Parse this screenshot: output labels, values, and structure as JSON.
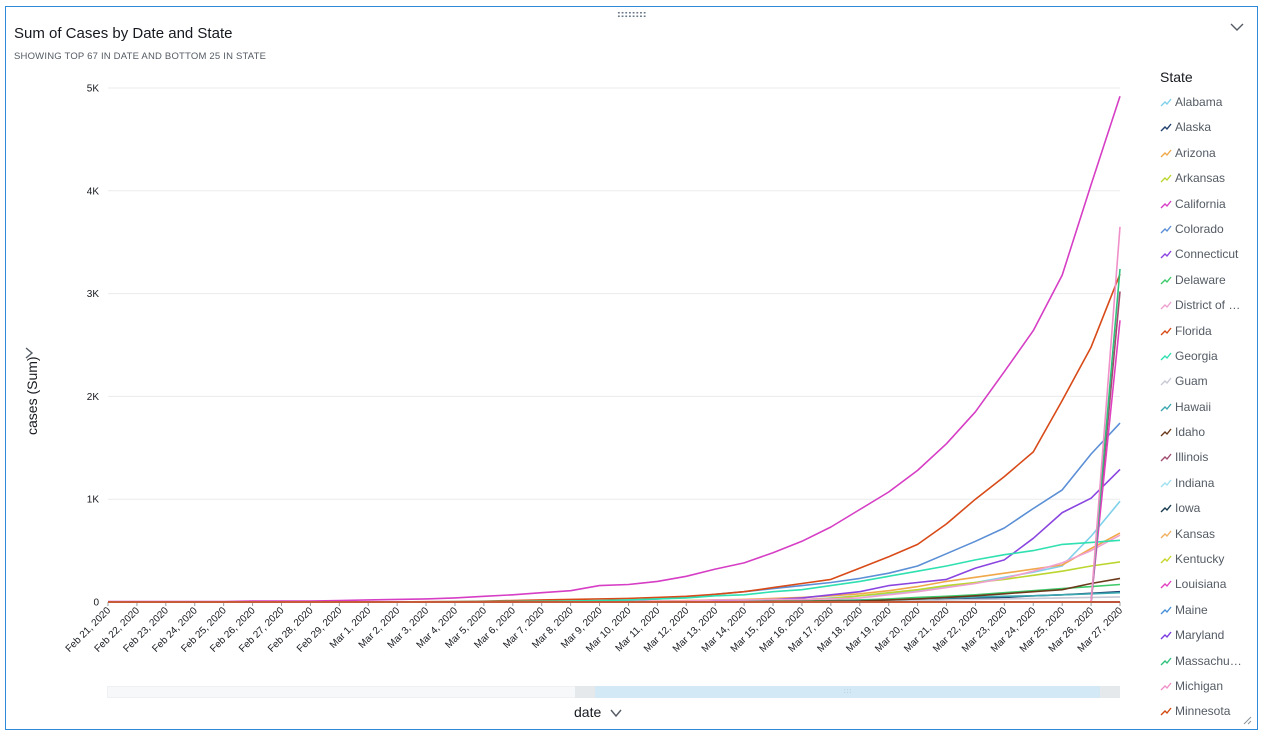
{
  "header": {
    "title": "Sum of Cases by Date and State",
    "subtitle": "SHOWING TOP 67 IN DATE AND BOTTOM 25 IN STATE"
  },
  "axes": {
    "y_label": "cases (Sum)",
    "x_label": "date",
    "y_ticks": [
      "0",
      "1K",
      "2K",
      "3K",
      "4K",
      "5K"
    ]
  },
  "legend": {
    "title": "State"
  },
  "icons": {
    "collapse": "chevron-down-icon",
    "y_menu": "chevron-right-icon",
    "x_menu": "chevron-down-icon",
    "drag": "drag-handle-icon",
    "resize": "resize-corner-icon"
  },
  "chart_data": {
    "type": "line",
    "title": "Sum of Cases by Date and State",
    "xlabel": "date",
    "ylabel": "cases (Sum)",
    "ylim": [
      0,
      5000
    ],
    "grid": true,
    "legend_position": "right",
    "x": [
      "Feb 21, 2020",
      "Feb 22, 2020",
      "Feb 23, 2020",
      "Feb 24, 2020",
      "Feb 25, 2020",
      "Feb 26, 2020",
      "Feb 27, 2020",
      "Feb 28, 2020",
      "Feb 29, 2020",
      "Mar 1, 2020",
      "Mar 2, 2020",
      "Mar 3, 2020",
      "Mar 4, 2020",
      "Mar 5, 2020",
      "Mar 6, 2020",
      "Mar 7, 2020",
      "Mar 8, 2020",
      "Mar 9, 2020",
      "Mar 10, 2020",
      "Mar 11, 2020",
      "Mar 12, 2020",
      "Mar 13, 2020",
      "Mar 14, 2020",
      "Mar 15, 2020",
      "Mar 16, 2020",
      "Mar 17, 2020",
      "Mar 18, 2020",
      "Mar 19, 2020",
      "Mar 20, 2020",
      "Mar 21, 2020",
      "Mar 22, 2020",
      "Mar 23, 2020",
      "Mar 24, 2020",
      "Mar 25, 2020",
      "Mar 26, 2020",
      "Mar 27, 2020"
    ],
    "series": [
      {
        "name": "Alabama",
        "color": "#7fd0ea",
        "values": [
          0,
          0,
          0,
          0,
          0,
          0,
          0,
          0,
          0,
          0,
          0,
          0,
          0,
          0,
          0,
          0,
          0,
          0,
          0,
          0,
          0,
          0,
          5,
          10,
          20,
          40,
          60,
          80,
          110,
          150,
          190,
          240,
          290,
          350,
          640,
          980
        ]
      },
      {
        "name": "Alaska",
        "color": "#1f3f6e",
        "values": [
          0,
          0,
          0,
          0,
          0,
          0,
          0,
          0,
          0,
          0,
          0,
          0,
          0,
          0,
          0,
          0,
          0,
          0,
          0,
          0,
          0,
          0,
          0,
          0,
          0,
          2,
          5,
          10,
          15,
          25,
          35,
          45,
          60,
          70,
          85,
          100
        ]
      },
      {
        "name": "Arizona",
        "color": "#f0a84a",
        "values": [
          0,
          0,
          0,
          0,
          0,
          0,
          0,
          0,
          0,
          1,
          1,
          1,
          1,
          1,
          1,
          1,
          2,
          5,
          8,
          10,
          15,
          20,
          25,
          35,
          45,
          60,
          80,
          110,
          150,
          200,
          240,
          280,
          320,
          360,
          520,
          670
        ]
      },
      {
        "name": "Arkansas",
        "color": "#bcd62f",
        "values": [
          0,
          0,
          0,
          0,
          0,
          0,
          0,
          0,
          0,
          0,
          0,
          0,
          0,
          0,
          0,
          0,
          0,
          0,
          0,
          0,
          5,
          10,
          15,
          20,
          25,
          35,
          60,
          90,
          120,
          160,
          190,
          220,
          260,
          300,
          350,
          390
        ]
      },
      {
        "name": "California",
        "color": "#d63ec5",
        "values": [
          5,
          5,
          5,
          5,
          5,
          10,
          10,
          10,
          15,
          20,
          25,
          30,
          40,
          55,
          70,
          90,
          110,
          160,
          170,
          200,
          250,
          320,
          380,
          480,
          590,
          730,
          900,
          1070,
          1280,
          1540,
          1850,
          2240,
          2640,
          3180,
          4060,
          4920
        ]
      },
      {
        "name": "Colorado",
        "color": "#5b8fd6",
        "values": [
          0,
          0,
          0,
          0,
          0,
          0,
          0,
          0,
          0,
          0,
          0,
          0,
          0,
          0,
          0,
          5,
          8,
          10,
          15,
          30,
          45,
          75,
          100,
          130,
          160,
          190,
          230,
          280,
          350,
          470,
          590,
          720,
          910,
          1090,
          1440,
          1740
        ]
      },
      {
        "name": "Connecticut",
        "color": "#8a45e0",
        "values": [
          0,
          0,
          0,
          0,
          0,
          0,
          0,
          0,
          0,
          0,
          0,
          0,
          0,
          0,
          0,
          0,
          0,
          1,
          2,
          4,
          6,
          10,
          15,
          25,
          40,
          70,
          100,
          160,
          190,
          220,
          330,
          410,
          620,
          870,
          1010,
          1290
        ]
      },
      {
        "name": "Delaware",
        "color": "#3ec96a",
        "values": [
          0,
          0,
          0,
          0,
          0,
          0,
          0,
          0,
          0,
          0,
          0,
          0,
          0,
          0,
          0,
          0,
          0,
          0,
          0,
          0,
          0,
          0,
          5,
          8,
          10,
          15,
          20,
          30,
          45,
          55,
          70,
          90,
          110,
          130,
          150,
          170
        ]
      },
      {
        "name": "District of Columbia",
        "color": "#f0a0d0",
        "values": [
          0,
          0,
          0,
          0,
          0,
          0,
          0,
          0,
          0,
          0,
          0,
          0,
          0,
          0,
          0,
          0,
          1,
          2,
          5,
          10,
          10,
          20,
          20,
          25,
          25,
          30,
          40,
          70,
          100,
          140,
          180,
          230,
          300,
          380,
          500,
          650
        ]
      },
      {
        "name": "Florida",
        "color": "#d84a18",
        "values": [
          0,
          0,
          0,
          0,
          0,
          0,
          0,
          0,
          0,
          1,
          1,
          3,
          5,
          8,
          15,
          20,
          25,
          30,
          35,
          45,
          55,
          75,
          100,
          140,
          180,
          220,
          330,
          440,
          560,
          760,
          1000,
          1220,
          1460,
          1960,
          2480,
          3190
        ]
      },
      {
        "name": "Georgia",
        "color": "#2fe0b0",
        "values": [
          0,
          0,
          0,
          0,
          0,
          0,
          0,
          0,
          0,
          0,
          2,
          2,
          3,
          5,
          6,
          8,
          10,
          15,
          20,
          30,
          40,
          60,
          70,
          100,
          120,
          160,
          200,
          250,
          300,
          350,
          410,
          460,
          500,
          560,
          580,
          600
        ]
      },
      {
        "name": "Guam",
        "color": "#c8c8d6",
        "values": [
          0,
          0,
          0,
          0,
          0,
          0,
          0,
          0,
          0,
          0,
          0,
          0,
          0,
          0,
          0,
          0,
          0,
          0,
          0,
          0,
          0,
          0,
          0,
          2,
          3,
          4,
          5,
          10,
          15,
          20,
          25,
          30,
          35,
          40,
          45,
          50
        ]
      },
      {
        "name": "Hawaii",
        "color": "#3aa6b0",
        "values": [
          0,
          0,
          0,
          0,
          0,
          0,
          0,
          0,
          0,
          0,
          0,
          0,
          0,
          0,
          0,
          0,
          0,
          0,
          0,
          0,
          0,
          0,
          2,
          4,
          6,
          10,
          15,
          20,
          30,
          40,
          50,
          55,
          60,
          70,
          80,
          90
        ]
      },
      {
        "name": "Idaho",
        "color": "#6b3a1a",
        "values": [
          0,
          0,
          0,
          0,
          0,
          0,
          0,
          0,
          0,
          0,
          0,
          0,
          0,
          0,
          0,
          0,
          0,
          0,
          0,
          0,
          0,
          0,
          2,
          4,
          6,
          8,
          10,
          20,
          30,
          45,
          60,
          80,
          100,
          120,
          180,
          230
        ]
      },
      {
        "name": "Illinois",
        "color": "#a04a6e",
        "values": [
          0,
          0,
          0,
          0,
          0,
          0,
          0,
          0,
          0,
          0,
          0,
          0,
          0,
          0,
          0,
          0,
          0,
          0,
          0,
          0,
          0,
          0,
          0,
          0,
          0,
          0,
          0,
          0,
          0,
          0,
          0,
          0,
          0,
          0,
          0,
          3020
        ]
      },
      {
        "name": "Indiana",
        "color": "#a0e0f0",
        "values": [
          0,
          0,
          0,
          0,
          0,
          0,
          0,
          0,
          0,
          0,
          0,
          0,
          0,
          0,
          0,
          0,
          0,
          0,
          0,
          0,
          0,
          0,
          0,
          0,
          0,
          0,
          0,
          0,
          0,
          0,
          0,
          0,
          0,
          0,
          0,
          0
        ]
      },
      {
        "name": "Iowa",
        "color": "#183a50",
        "values": [
          0,
          0,
          0,
          0,
          0,
          0,
          0,
          0,
          0,
          0,
          0,
          0,
          0,
          0,
          0,
          0,
          0,
          0,
          0,
          0,
          0,
          0,
          0,
          0,
          0,
          0,
          0,
          0,
          0,
          0,
          0,
          0,
          0,
          0,
          0,
          0
        ]
      },
      {
        "name": "Kansas",
        "color": "#f0b060",
        "values": [
          0,
          0,
          0,
          0,
          0,
          0,
          0,
          0,
          0,
          0,
          0,
          0,
          0,
          0,
          0,
          0,
          0,
          0,
          0,
          0,
          0,
          0,
          0,
          0,
          0,
          0,
          0,
          0,
          0,
          0,
          0,
          0,
          0,
          0,
          0,
          0
        ]
      },
      {
        "name": "Kentucky",
        "color": "#c8d62a",
        "values": [
          0,
          0,
          0,
          0,
          0,
          0,
          0,
          0,
          0,
          0,
          0,
          0,
          0,
          0,
          0,
          0,
          0,
          0,
          0,
          0,
          0,
          0,
          0,
          0,
          0,
          0,
          0,
          0,
          0,
          0,
          0,
          0,
          0,
          0,
          0,
          0
        ]
      },
      {
        "name": "Louisiana",
        "color": "#e040c0",
        "values": [
          0,
          0,
          0,
          0,
          0,
          0,
          0,
          0,
          0,
          0,
          0,
          0,
          0,
          0,
          0,
          0,
          0,
          0,
          0,
          0,
          0,
          0,
          0,
          0,
          0,
          0,
          0,
          0,
          0,
          0,
          0,
          0,
          0,
          0,
          0,
          2740
        ]
      },
      {
        "name": "Maine",
        "color": "#4a90d8",
        "values": [
          0,
          0,
          0,
          0,
          0,
          0,
          0,
          0,
          0,
          0,
          0,
          0,
          0,
          0,
          0,
          0,
          0,
          0,
          0,
          0,
          0,
          0,
          0,
          0,
          0,
          0,
          0,
          0,
          0,
          0,
          0,
          0,
          0,
          0,
          0,
          0
        ]
      },
      {
        "name": "Maryland",
        "color": "#7a3ae0",
        "values": [
          0,
          0,
          0,
          0,
          0,
          0,
          0,
          0,
          0,
          0,
          0,
          0,
          0,
          0,
          0,
          0,
          0,
          0,
          0,
          0,
          0,
          0,
          0,
          0,
          0,
          0,
          0,
          0,
          0,
          0,
          0,
          0,
          0,
          0,
          0,
          0
        ]
      },
      {
        "name": "Massachusetts",
        "color": "#2ec07a",
        "values": [
          0,
          0,
          0,
          0,
          0,
          0,
          0,
          0,
          0,
          0,
          0,
          0,
          0,
          0,
          0,
          0,
          0,
          0,
          0,
          0,
          0,
          0,
          0,
          0,
          0,
          0,
          0,
          0,
          0,
          0,
          0,
          0,
          0,
          0,
          0,
          3240
        ]
      },
      {
        "name": "Michigan",
        "color": "#f090c8",
        "values": [
          0,
          0,
          0,
          0,
          0,
          0,
          0,
          0,
          0,
          0,
          0,
          0,
          0,
          0,
          0,
          0,
          0,
          0,
          0,
          0,
          0,
          0,
          0,
          0,
          0,
          0,
          0,
          0,
          0,
          0,
          0,
          0,
          0,
          0,
          0,
          3650
        ]
      },
      {
        "name": "Minnesota",
        "color": "#d04a10",
        "values": [
          0,
          0,
          0,
          0,
          0,
          0,
          0,
          0,
          0,
          0,
          0,
          0,
          0,
          0,
          0,
          0,
          0,
          0,
          0,
          0,
          0,
          0,
          0,
          0,
          0,
          0,
          0,
          0,
          0,
          0,
          0,
          0,
          0,
          0,
          0,
          0
        ]
      }
    ]
  }
}
